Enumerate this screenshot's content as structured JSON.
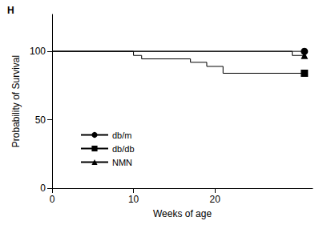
{
  "chart_data": {
    "type": "line",
    "title": "H",
    "x_label": "Weeks of age",
    "y_label": "Probability of Survival",
    "xlim": [
      0,
      32
    ],
    "xticks": [
      0,
      10,
      20
    ],
    "ylim": [
      0,
      127
    ],
    "yticks": [
      0,
      50,
      100
    ],
    "grid": false,
    "legend": "left",
    "series": [
      {
        "name": "db/m",
        "color": "#000000",
        "marker": "circle",
        "line_style": "step",
        "x": [
          0,
          31
        ],
        "values": [
          100,
          100
        ]
      },
      {
        "name": "db/db",
        "color": "#000000",
        "marker": "square",
        "line_style": "step",
        "x": [
          0,
          10,
          11,
          17,
          19,
          21,
          31
        ],
        "values": [
          100,
          97,
          94.5,
          92,
          89,
          84,
          84
        ]
      },
      {
        "name": "NMN",
        "color": "#000000",
        "marker": "triangle",
        "line_style": "step",
        "x": [
          0,
          29.5,
          31
        ],
        "values": [
          100,
          97,
          97
        ]
      }
    ]
  }
}
